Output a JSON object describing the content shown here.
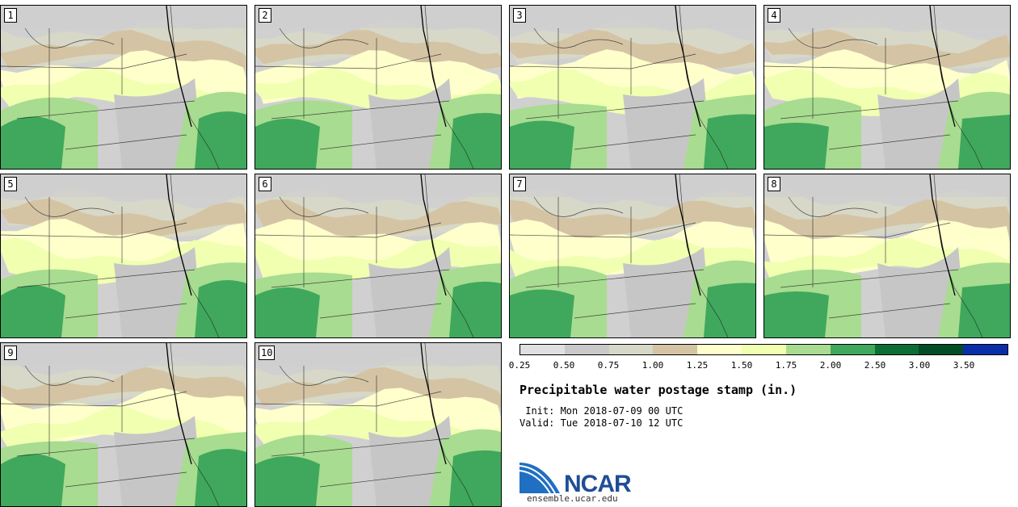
{
  "stamps": [
    "1",
    "2",
    "3",
    "4",
    "5",
    "6",
    "7",
    "8",
    "9",
    "10"
  ],
  "colorbar": {
    "colors": [
      "#e0e0e0",
      "#c9c9c9",
      "#d8d8c8",
      "#d4c4a4",
      "#ffffcc",
      "#f0ffb0",
      "#a8dc90",
      "#3fa85c",
      "#0a6e35",
      "#044d24",
      "#0a2ea8"
    ],
    "labels": [
      "0.25",
      "0.50",
      "0.75",
      "1.00",
      "1.25",
      "1.50",
      "1.75",
      "2.00",
      "2.50",
      "3.00",
      "3.50"
    ]
  },
  "title": "Precipitable water postage stamp (in.)",
  "init_line": " Init: Mon 2018-07-09 00 UTC",
  "valid_line": "Valid: Tue 2018-07-10 12 UTC",
  "logo": {
    "name": "NCAR",
    "url": "ensemble.ucar.edu"
  }
}
